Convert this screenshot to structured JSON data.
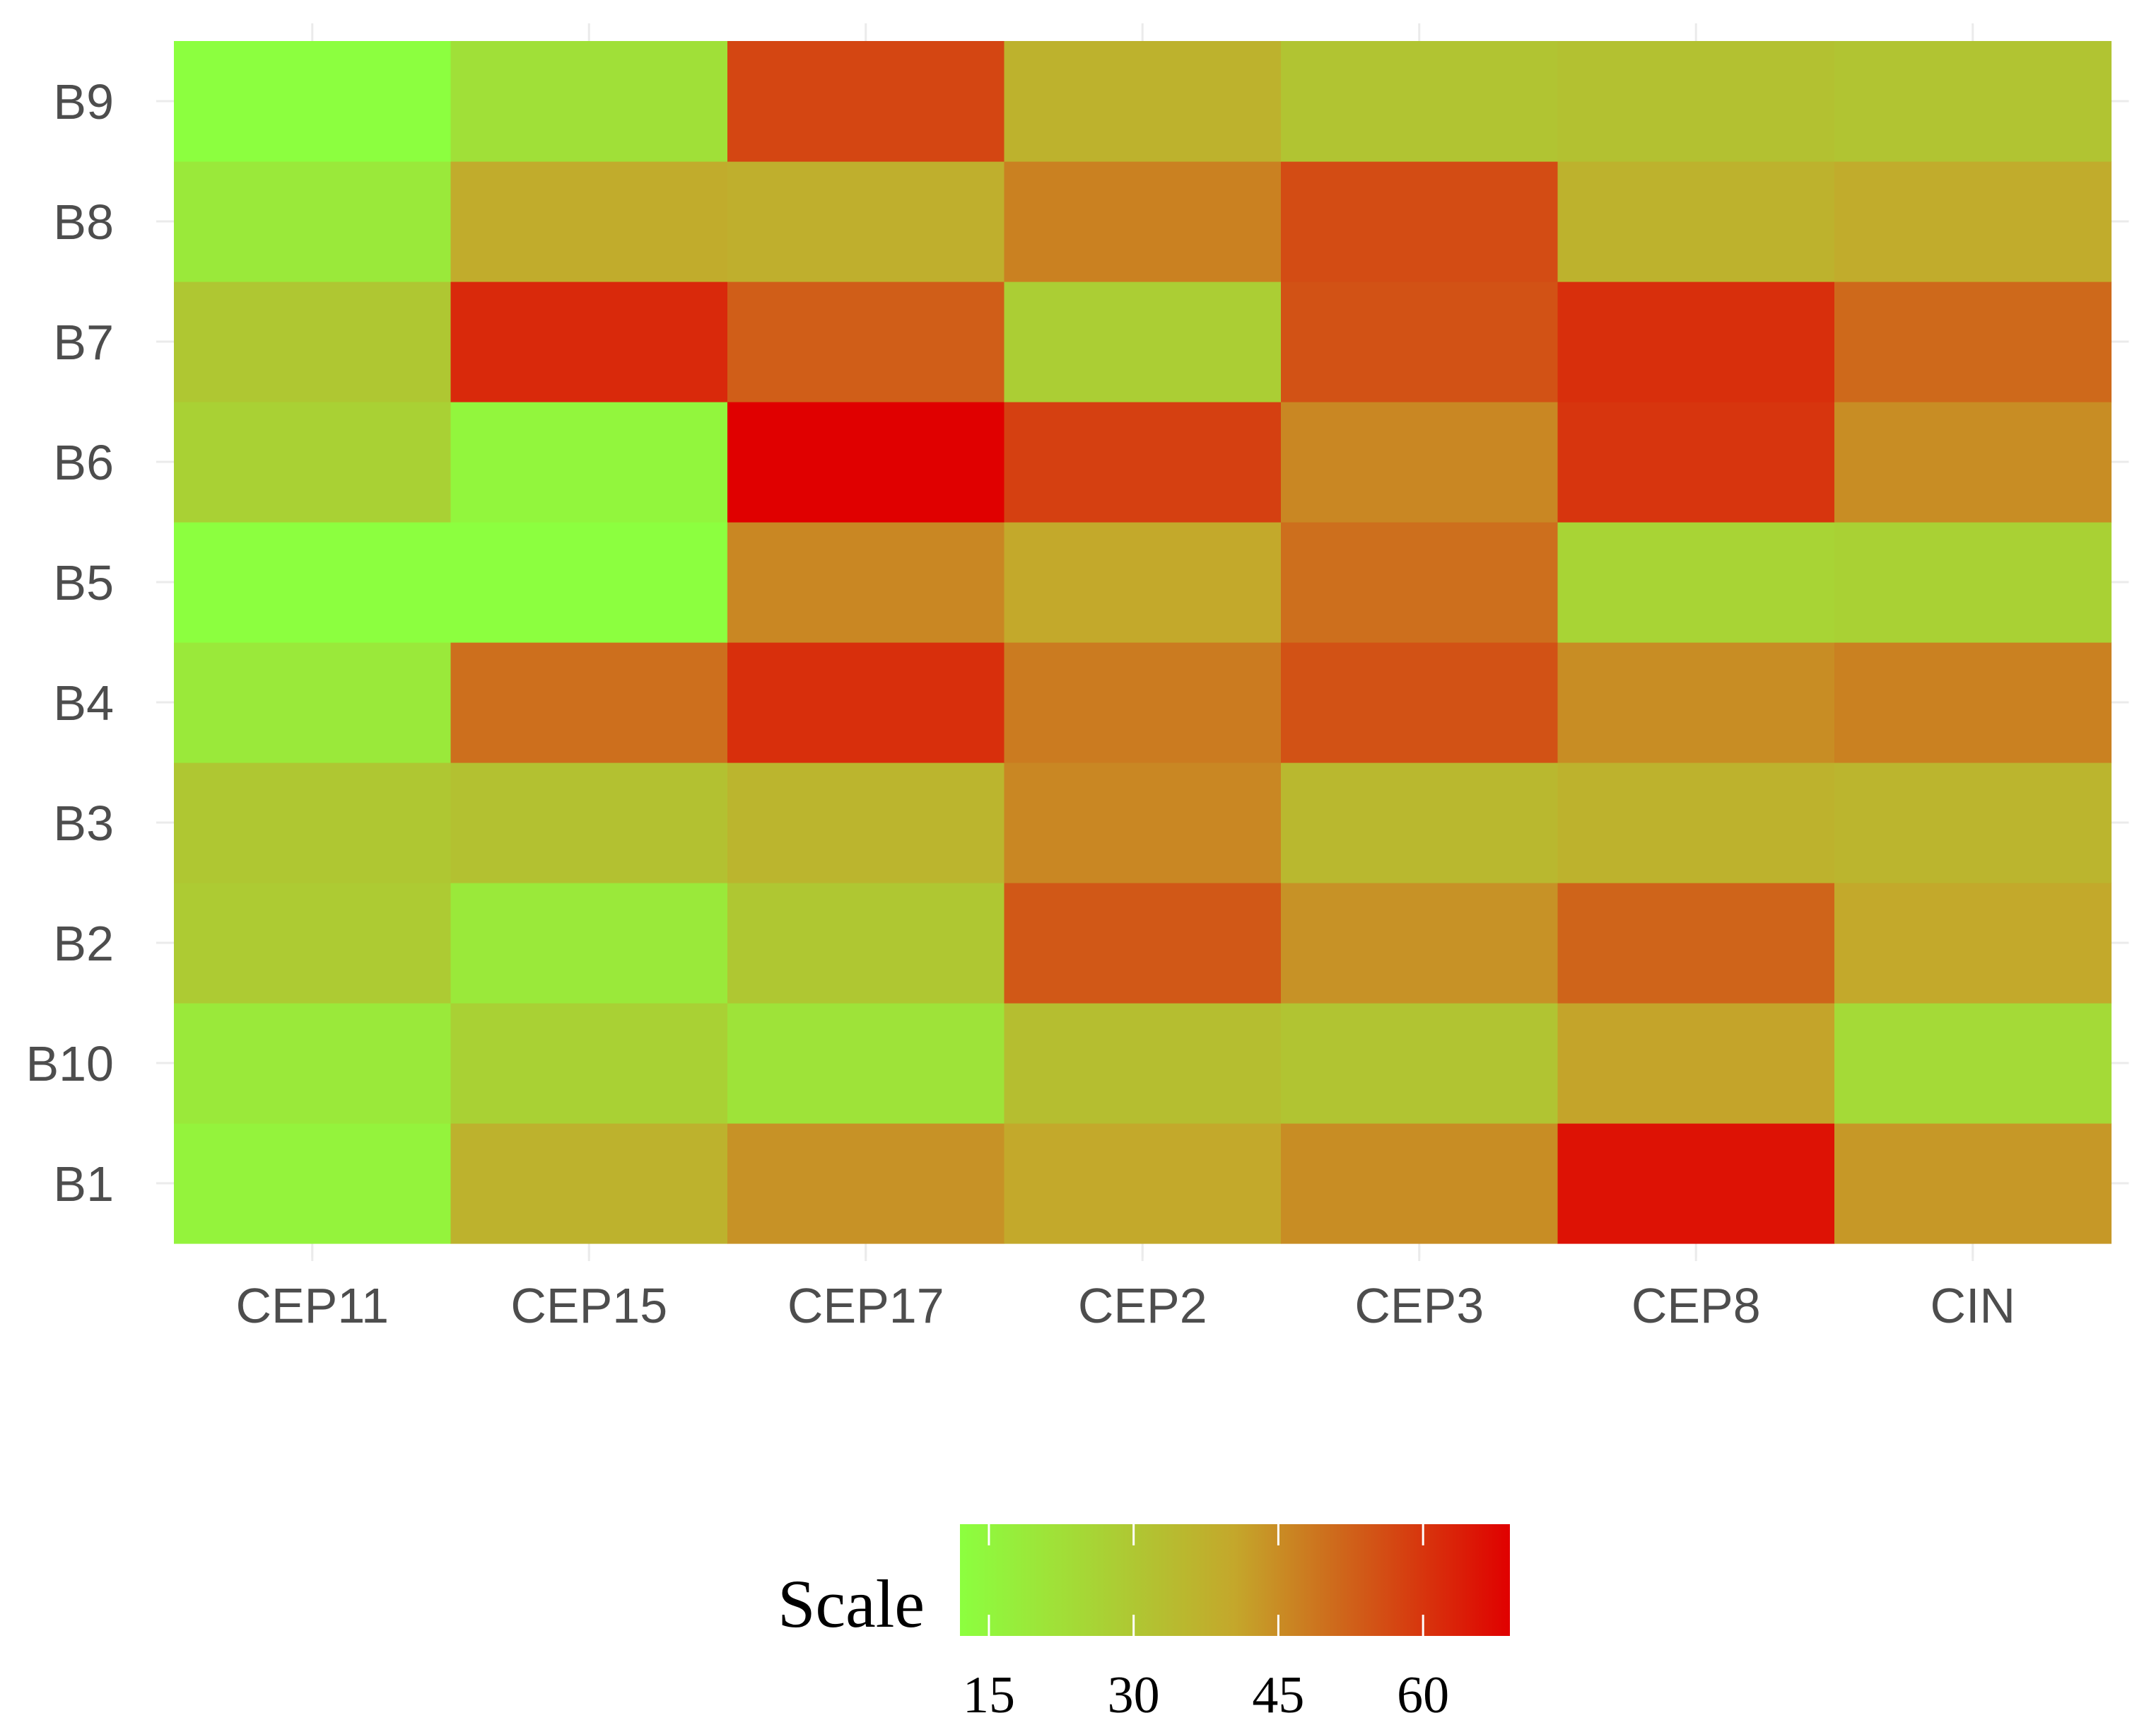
{
  "chart_data": {
    "type": "heatmap",
    "x_categories": [
      "CEP11",
      "CEP15",
      "CEP17",
      "CEP2",
      "CEP3",
      "CEP8",
      "CIN"
    ],
    "y_categories": [
      "B1",
      "B10",
      "B2",
      "B3",
      "B4",
      "B5",
      "B6",
      "B7",
      "B8",
      "B9"
    ],
    "values": [
      [
        16,
        37,
        44,
        40,
        45,
        66,
        43
      ],
      [
        19,
        27,
        21,
        33,
        31,
        41,
        24
      ],
      [
        29,
        19,
        30,
        54,
        44,
        52,
        40
      ],
      [
        30,
        32,
        36,
        46,
        35,
        37,
        36
      ],
      [
        19,
        50,
        61,
        48,
        55,
        45,
        47
      ],
      [
        12,
        12,
        46,
        40,
        50,
        26,
        27
      ],
      [
        27,
        15,
        69,
        58,
        46,
        60,
        45
      ],
      [
        30,
        62,
        53,
        28,
        55,
        61,
        51
      ],
      [
        19,
        39,
        38,
        47,
        56,
        37,
        39
      ],
      [
        12,
        22,
        57,
        37,
        31,
        32,
        31
      ]
    ],
    "title": "",
    "xlabel": "",
    "ylabel": "",
    "color_scale": {
      "low_color": "#8cff3f",
      "mid_color": "#c4a72b",
      "high_color": "#e00000",
      "min": 12,
      "max": 69
    },
    "legend": {
      "title": "Scale",
      "ticks": [
        "15",
        "30",
        "45",
        "60"
      ],
      "tick_values": [
        15,
        30,
        45,
        60
      ],
      "placement": "bottom"
    },
    "grid": true
  }
}
